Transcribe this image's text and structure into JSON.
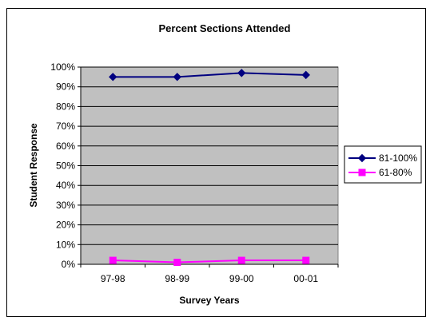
{
  "chart_data": {
    "type": "line",
    "title": "Percent Sections Attended",
    "xlabel": "Survey Years",
    "ylabel": "Student Response",
    "categories": [
      "97-98",
      "98-99",
      "99-00",
      "00-01"
    ],
    "ylim": [
      0,
      100
    ],
    "y_ticks": [
      "0%",
      "10%",
      "20%",
      "30%",
      "40%",
      "50%",
      "60%",
      "70%",
      "80%",
      "90%",
      "100%"
    ],
    "grid": true,
    "legend_position": "right",
    "plot_background": "#C0C0C0",
    "series": [
      {
        "name": "81-100%",
        "values": [
          95,
          95,
          97,
          96
        ],
        "color": "#000080",
        "marker": "diamond"
      },
      {
        "name": "61-80%",
        "values": [
          2,
          1,
          2,
          2
        ],
        "color": "#FF00FF",
        "marker": "square"
      }
    ]
  }
}
